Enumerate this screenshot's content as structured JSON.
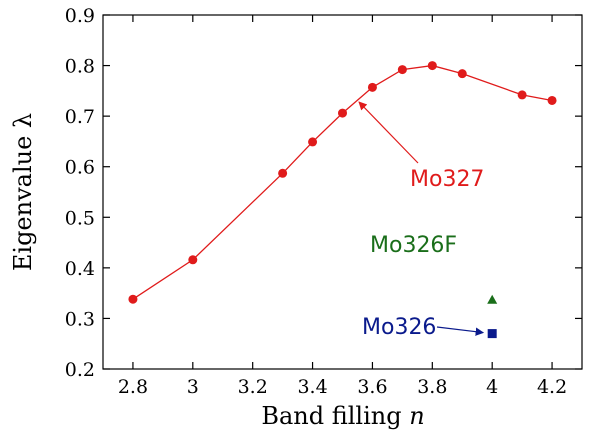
{
  "chart_data": {
    "type": "scatter",
    "xlabel_text": "Band filling ",
    "xlabel_var": "n",
    "ylabel": "Eigenvalue λ",
    "xlim": [
      2.7,
      4.3
    ],
    "ylim": [
      0.2,
      0.9
    ],
    "xticks": [
      2.8,
      3,
      3.2,
      3.4,
      3.6,
      3.8,
      4,
      4.2
    ],
    "xtick_labels": [
      "2.8",
      "3",
      "3.2",
      "3.4",
      "3.6",
      "3.8",
      "4",
      "4.2"
    ],
    "yticks": [
      0.2,
      0.3,
      0.4,
      0.5,
      0.6,
      0.7,
      0.8,
      0.9
    ],
    "ytick_labels": [
      "0.2",
      "0.3",
      "0.4",
      "0.5",
      "0.6",
      "0.7",
      "0.8",
      "0.9"
    ],
    "grid": false,
    "series": [
      {
        "name": "Mo327",
        "color": "#e01b1b",
        "marker": "circle",
        "line": true,
        "x": [
          2.8,
          3.0,
          3.3,
          3.4,
          3.5,
          3.6,
          3.7,
          3.8,
          3.9,
          4.1,
          4.2
        ],
        "y": [
          0.338,
          0.416,
          0.587,
          0.649,
          0.706,
          0.757,
          0.792,
          0.8,
          0.784,
          0.742,
          0.731
        ]
      },
      {
        "name": "Mo326F",
        "color": "#1a6e1a",
        "marker": "triangle",
        "line": false,
        "x": [
          4.0
        ],
        "y": [
          0.337
        ]
      },
      {
        "name": "Mo326",
        "color": "#0a1a8c",
        "marker": "square",
        "line": false,
        "x": [
          4.0
        ],
        "y": [
          0.27
        ]
      }
    ],
    "annotations": [
      {
        "text": "Mo327",
        "color": "#e01b1b",
        "arrow_to": [
          3.555,
          0.728
        ]
      },
      {
        "text": "Mo326F",
        "color": "#1a6e1a"
      },
      {
        "text": "Mo326",
        "color": "#0a1a8c",
        "arrow_to": [
          3.99,
          0.272
        ]
      }
    ]
  }
}
